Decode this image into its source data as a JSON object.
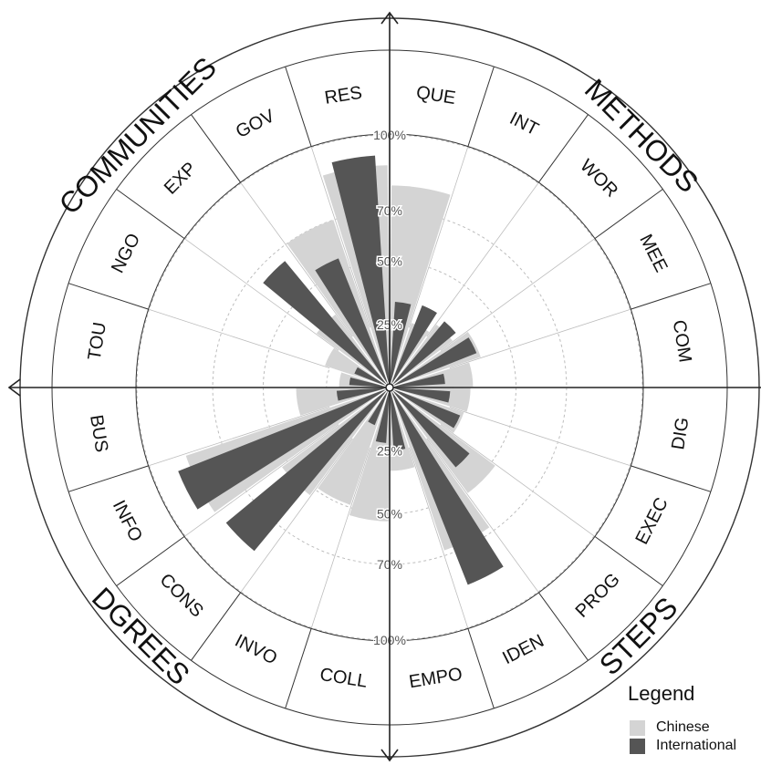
{
  "chart_data": {
    "type": "polar-bar",
    "quadrants": [
      "METHODS",
      "STEPS",
      "DGREES",
      "COMMUNITIES"
    ],
    "categories": [
      "QUE",
      "INT",
      "WOR",
      "MEE",
      "COM",
      "DIG",
      "EXEC",
      "PROG",
      "IDEN",
      "EMPO",
      "COLL",
      "INVO",
      "CONS",
      "INFO",
      "BUS",
      "TOU",
      "NGO",
      "EXP",
      "GOV",
      "RES"
    ],
    "radial_ticks": [
      "25%",
      "50%",
      "70%",
      "100%"
    ],
    "series": [
      {
        "name": "Chinese",
        "color": "#d4d4d4",
        "values": [
          0.8,
          0.27,
          0.31,
          0.38,
          0.33,
          0.32,
          0.31,
          0.52,
          0.68,
          0.33,
          0.53,
          0.49,
          0.53,
          0.85,
          0.37,
          0.2,
          0.27,
          0.36,
          0.7,
          0.88
        ]
      },
      {
        "name": "International",
        "color": "#555555",
        "values": [
          0.34,
          0.35,
          0.34,
          0.37,
          0.22,
          0.24,
          0.3,
          0.41,
          0.84,
          0.25,
          0.22,
          0.16,
          0.84,
          0.9,
          0.21,
          0.16,
          0.15,
          0.65,
          0.55,
          0.92
        ]
      }
    ]
  },
  "legend": {
    "title": "Legend",
    "items": [
      {
        "label": "Chinese",
        "color": "#d4d4d4"
      },
      {
        "label": "International",
        "color": "#555555"
      }
    ]
  }
}
